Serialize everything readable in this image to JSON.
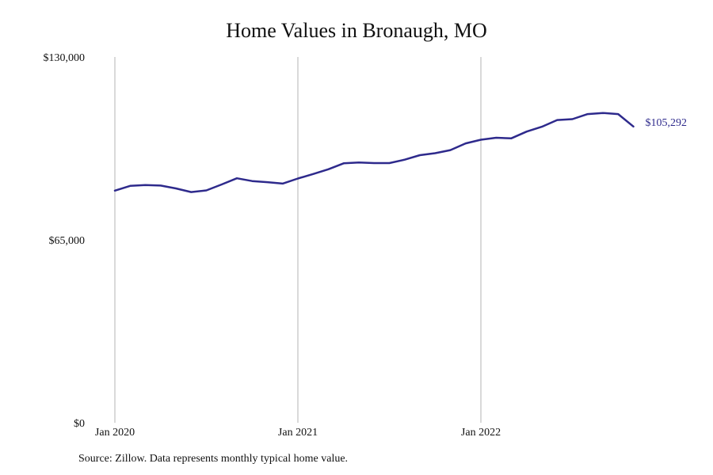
{
  "chart_data": {
    "type": "line",
    "title": "Home Values in Bronaugh, MO",
    "xlabel": "",
    "ylabel": "",
    "ylim": [
      0,
      130000
    ],
    "y_ticks": [
      {
        "value": 0,
        "label": "$0"
      },
      {
        "value": 65000,
        "label": "$65,000"
      },
      {
        "value": 130000,
        "label": "$130,000"
      }
    ],
    "x_ticks": [
      {
        "index": 0,
        "label": "Jan 2020"
      },
      {
        "index": 12,
        "label": "Jan 2021"
      },
      {
        "index": 24,
        "label": "Jan 2022"
      }
    ],
    "grid": "vertical",
    "legend": "none",
    "line_color": "#2e2a8c",
    "series": [
      {
        "x": [
          "2020-01",
          "2020-02",
          "2020-03",
          "2020-04",
          "2020-05",
          "2020-06",
          "2020-07",
          "2020-08",
          "2020-09",
          "2020-10",
          "2020-11",
          "2020-12",
          "2021-01",
          "2021-02",
          "2021-03",
          "2021-04",
          "2021-05",
          "2021-06",
          "2021-07",
          "2021-08",
          "2021-09",
          "2021-10",
          "2021-11",
          "2021-12",
          "2022-01",
          "2022-02",
          "2022-03",
          "2022-04",
          "2022-05",
          "2022-06",
          "2022-07",
          "2022-08",
          "2022-09",
          "2022-10",
          "2022-11"
        ],
        "values": [
          82500,
          84200,
          84500,
          84300,
          83300,
          82000,
          82600,
          84700,
          86900,
          85900,
          85500,
          85000,
          86800,
          88400,
          90100,
          92200,
          92500,
          92300,
          92300,
          93500,
          95100,
          95800,
          96900,
          99300,
          100600,
          101300,
          101100,
          103500,
          105200,
          107600,
          107900,
          109700,
          110100,
          109700,
          105292
        ]
      }
    ],
    "end_label": "$105,292"
  },
  "source": "Source: Zillow. Data represents monthly typical home value."
}
